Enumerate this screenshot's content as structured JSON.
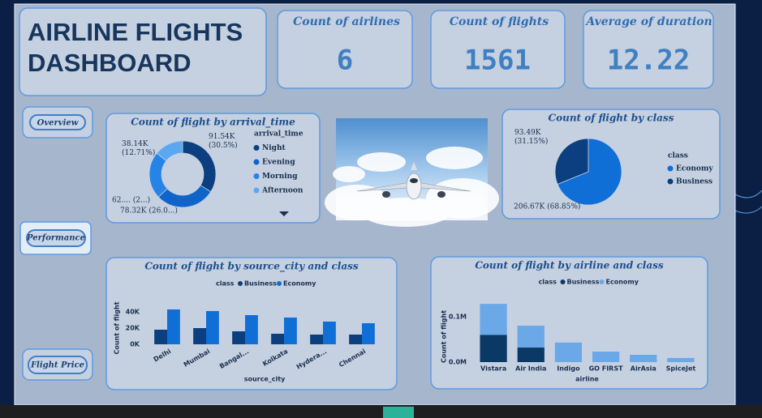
{
  "title": "AIRLINE FLIGHTS DASHBOARD",
  "kpis": [
    {
      "label": "Count of airlines",
      "value": 6
    },
    {
      "label": "Count of flights",
      "value": 1561
    },
    {
      "label": "Average of duration",
      "value": 12.22
    }
  ],
  "nav": [
    "Overview",
    "Performance",
    "Flight Price"
  ],
  "chart_data": [
    {
      "type": "donut",
      "title": "Count of flight by arrival_time",
      "legend_title": "arrival_time",
      "categories": [
        "Night",
        "Evening",
        "Morning",
        "Afternoon"
      ],
      "values": [
        91.54,
        78.32,
        62,
        38.14
      ],
      "value_labels": [
        "91.54K (30.5%)",
        "78.32K (26.0...)",
        "62.... (2...)",
        "38.14K (12.71%)"
      ],
      "colors": [
        "#0b3f7f",
        "#0f63c9",
        "#2584e6",
        "#5aa8f0"
      ]
    },
    {
      "type": "pie",
      "title": "Count of flight by class",
      "legend_title": "class",
      "categories": [
        "Economy",
        "Business"
      ],
      "values": [
        206.67,
        93.49
      ],
      "value_labels": [
        "206.67K (68.85%)",
        "93.49K (31.15%)"
      ],
      "colors": [
        "#0f6fd6",
        "#0b3f7f"
      ]
    },
    {
      "type": "bar",
      "title": "Count of flight by source_city and class",
      "legend_title": "class",
      "x_label": "source_city",
      "y_label": "Count of flight",
      "categories": [
        "Delhi",
        "Mumbai",
        "Bangal...",
        "Kolkata",
        "Hydera...",
        "Chennai"
      ],
      "series": [
        {
          "name": "Business",
          "color": "#0b3f7f",
          "values": [
            18000,
            20000,
            16000,
            13000,
            12000,
            12000
          ]
        },
        {
          "name": "Economy",
          "color": "#0f6fd6",
          "values": [
            43000,
            41000,
            36000,
            33000,
            28000,
            26000
          ]
        }
      ],
      "ylim": [
        0,
        50000
      ],
      "yticks": [
        {
          "value": 0,
          "label": "0K"
        },
        {
          "value": 20000,
          "label": "20K"
        },
        {
          "value": 40000,
          "label": "40K"
        }
      ]
    },
    {
      "type": "stacked_bar",
      "title": "Count of flight by airline and class",
      "legend_title": "class",
      "x_label": "airline",
      "y_label": "Count of flight",
      "categories": [
        "Vistara",
        "Air India",
        "Indigo",
        "GO FIRST",
        "AirAsia",
        "SpiceJet"
      ],
      "series": [
        {
          "name": "Business",
          "color": "#0b3966",
          "values": [
            60000,
            32000,
            0,
            0,
            0,
            0
          ]
        },
        {
          "name": "Economy",
          "color": "#6aa8e8",
          "values": [
            68000,
            48000,
            43000,
            23000,
            16000,
            9000
          ]
        }
      ],
      "ylim": [
        0,
        130000
      ],
      "yticks": [
        {
          "value": 0,
          "label": "0.0M"
        },
        {
          "value": 100000,
          "label": "0.1M"
        }
      ]
    }
  ]
}
